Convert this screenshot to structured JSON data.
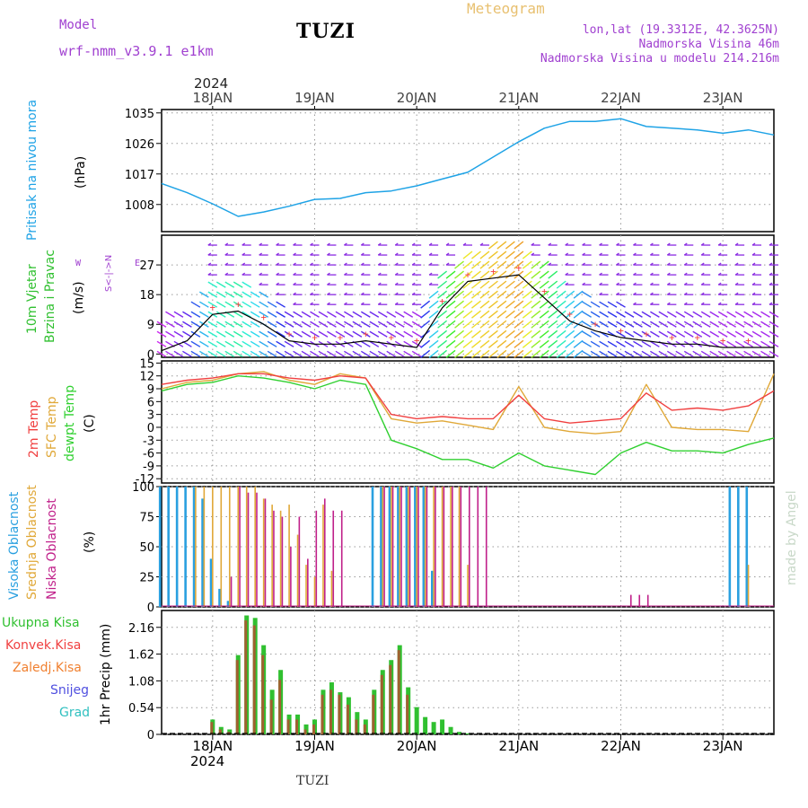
{
  "header": {
    "model_label": "Model",
    "model_name": "wrf-nmm_v3.9.1  e1km",
    "station": "TUZI",
    "product": "Meteogram",
    "lonlat": "lon,lat (19.3312E, 42.3625N)",
    "elevation": "Nadmorska Visina 46m",
    "model_elevation": "Nadmorska Visina u modelu 214.216m",
    "footer_station": "TUZI",
    "watermark": "made by Angel"
  },
  "colors": {
    "pressure": "#1fa3e6",
    "temp2m": "#f04040",
    "sfc_temp": "#e0a838",
    "dewpt": "#30d030",
    "high_cloud": "#2aa0e0",
    "mid_cloud": "#e0a838",
    "low_cloud": "#c0208a",
    "total_precip": "#30c030",
    "conv_precip": "#e04040",
    "model_purple": "#a040d0",
    "product_gold": "#e8c070"
  },
  "time_axis": {
    "start": "2024-01-17 12:00",
    "end": "2024-01-23 12:00",
    "year": "2024",
    "day_labels": [
      "18JAN",
      "19JAN",
      "20JAN",
      "21JAN",
      "22JAN",
      "23JAN"
    ]
  },
  "panels": {
    "pressure": {
      "ylabel_name": "Pritisak na nivou mora",
      "ylabel_unit": "(hPa)",
      "ticks": [
        "1035",
        "1026",
        "1017",
        "1008"
      ]
    },
    "wind": {
      "ylabel_name": "10m Vjetar",
      "ylabel_name2": "Brzina i Pravac",
      "ylabel_unit": "(m/s)",
      "ticks": [
        "27",
        "18",
        "9",
        "0"
      ],
      "compass_ns": "S<-|->N",
      "compass_w": "W",
      "compass_e": "E"
    },
    "temperature": {
      "ylabel_a": "2m Temp",
      "ylabel_b": "SFC Temp",
      "ylabel_c": "dewpt Temp",
      "ylabel_unit": "(C)",
      "ticks": [
        "15",
        "12",
        "9",
        "6",
        "3",
        "0",
        "-3",
        "-6",
        "-9",
        "-12"
      ]
    },
    "cloud": {
      "ylabel_a": "Visoka Oblacnost",
      "ylabel_b": "Srednja Oblacnost",
      "ylabel_c": "Niska Oblacnost",
      "ylabel_unit": "(%)",
      "ticks": [
        "100",
        "75",
        "50",
        "25",
        "0"
      ]
    },
    "precip": {
      "legend": [
        "Ukupna Kisa",
        "Konvek.Kisa",
        "Zaledj.Kisa",
        "Snijeg",
        "Grad"
      ],
      "legend_colors": [
        "#30c030",
        "#f04040",
        "#f08030",
        "#5050e0",
        "#30c0c0"
      ],
      "ylabel": "1hr Precip (mm)",
      "ticks": [
        "2.16",
        "1.62",
        "1.08",
        "0.54",
        "0"
      ]
    }
  },
  "chart_data": [
    {
      "type": "line",
      "panel": "pressure",
      "ylabel": "(hPa)",
      "ylim": [
        1000,
        1036
      ],
      "x_hours": [
        0,
        6,
        12,
        18,
        24,
        30,
        36,
        42,
        48,
        54,
        60,
        66,
        72,
        78,
        84,
        90,
        96,
        102,
        108,
        114,
        120,
        126,
        132,
        138,
        144
      ],
      "series": [
        {
          "values": [
            1014.2,
            1011.5,
            1008.2,
            1004.5,
            1005.8,
            1007.5,
            1009.5,
            1009.8,
            1011.5,
            1012.0,
            1013.5,
            1015.5,
            1017.5,
            1022.0,
            1026.5,
            1030.5,
            1032.5,
            1032.5,
            1033.3,
            1031.0,
            1030.5,
            1030.0,
            1029.0,
            1030.0,
            1028.5
          ]
        }
      ]
    },
    {
      "type": "line",
      "panel": "wind",
      "ylabel": "(m/s)",
      "ylim": [
        -1,
        36
      ],
      "x_hours": [
        0,
        6,
        12,
        18,
        24,
        30,
        36,
        42,
        48,
        54,
        60,
        66,
        72,
        78,
        84,
        90,
        96,
        102,
        108,
        114,
        120,
        126,
        132,
        138,
        144
      ],
      "series": [
        {
          "values": [
            1,
            4,
            12,
            13,
            9,
            4,
            3,
            3,
            4,
            3,
            2,
            14,
            22,
            23,
            24,
            17,
            10,
            7,
            5,
            4,
            3,
            3,
            2,
            2,
            2
          ]
        }
      ]
    },
    {
      "type": "line",
      "panel": "temperature",
      "ylabel": "(C)",
      "ylim": [
        -13,
        15.5
      ],
      "x_hours": [
        0,
        6,
        12,
        18,
        24,
        30,
        36,
        42,
        48,
        54,
        60,
        66,
        72,
        78,
        84,
        90,
        96,
        102,
        108,
        114,
        120,
        126,
        132,
        138,
        144
      ],
      "series": [
        {
          "values": [
            10,
            11,
            11.5,
            12.5,
            12.5,
            11.5,
            11,
            12,
            11.5,
            3,
            2,
            2.5,
            2,
            2,
            7.5,
            2,
            1,
            1.5,
            2,
            8,
            4,
            4.5,
            4,
            5,
            8.5
          ]
        },
        {
          "values": [
            9,
            10.5,
            11,
            12.5,
            13,
            11,
            10,
            12.5,
            11.5,
            2,
            1,
            1.5,
            0.5,
            -0.5,
            9.5,
            0,
            -1,
            -1.5,
            -1,
            10,
            0,
            -0.5,
            -0.5,
            -1,
            12.5
          ]
        },
        {
          "values": [
            8.5,
            10,
            10.5,
            12,
            11.5,
            10.5,
            9,
            11,
            10,
            -3,
            -5,
            -7.5,
            -7.5,
            -9.5,
            -6,
            -9,
            -10,
            -11,
            -6,
            -3.5,
            -5.5,
            -5.5,
            -6,
            -4,
            -2.5
          ]
        }
      ]
    },
    {
      "type": "bar",
      "panel": "cloud",
      "ylabel": "(%)",
      "ylim": [
        0,
        100
      ],
      "x_hours": [
        0,
        2,
        4,
        6,
        8,
        10,
        12,
        14,
        16,
        18,
        20,
        22,
        24,
        26,
        28,
        30,
        32,
        34,
        36,
        38,
        40,
        42,
        44,
        46,
        48,
        50,
        52,
        54,
        56,
        58,
        60,
        62,
        64,
        66,
        68,
        70,
        72,
        74,
        76,
        78,
        80,
        82,
        84,
        86,
        88,
        90,
        92,
        94,
        96,
        98,
        100,
        102,
        104,
        106,
        108,
        110,
        112,
        114,
        116,
        118,
        120,
        122,
        124,
        126,
        128,
        130,
        132,
        134,
        136,
        138,
        140,
        142,
        144
      ],
      "series": [
        {
          "values": [
            100,
            100,
            100,
            100,
            100,
            90,
            40,
            15,
            5,
            0,
            0,
            0,
            0,
            0,
            0,
            0,
            0,
            0,
            0,
            0,
            0,
            0,
            0,
            0,
            0,
            100,
            100,
            100,
            100,
            100,
            100,
            100,
            30,
            0,
            0,
            0,
            0,
            0,
            0,
            0,
            0,
            0,
            0,
            0,
            0,
            0,
            0,
            0,
            0,
            0,
            0,
            0,
            0,
            0,
            0,
            0,
            0,
            0,
            0,
            0,
            0,
            0,
            0,
            0,
            0,
            0,
            0,
            100,
            100,
            100,
            0,
            0,
            0
          ]
        },
        {
          "values": [
            0,
            0,
            0,
            0,
            100,
            100,
            100,
            100,
            100,
            100,
            100,
            100,
            90,
            85,
            80,
            85,
            60,
            35,
            25,
            85,
            30,
            0,
            0,
            0,
            0,
            0,
            100,
            100,
            100,
            100,
            100,
            100,
            100,
            100,
            100,
            100,
            35,
            0,
            0,
            0,
            0,
            0,
            0,
            0,
            0,
            0,
            0,
            0,
            0,
            0,
            0,
            0,
            0,
            0,
            0,
            0,
            0,
            0,
            0,
            0,
            0,
            0,
            0,
            0,
            0,
            0,
            0,
            0,
            0,
            35,
            0,
            0,
            0
          ]
        },
        {
          "values": [
            0,
            0,
            0,
            0,
            0,
            0,
            0,
            0,
            25,
            100,
            95,
            95,
            90,
            80,
            75,
            50,
            75,
            40,
            80,
            90,
            80,
            80,
            0,
            0,
            0,
            0,
            100,
            100,
            100,
            100,
            100,
            100,
            100,
            100,
            100,
            100,
            100,
            100,
            100,
            0,
            0,
            0,
            0,
            0,
            0,
            0,
            0,
            0,
            0,
            0,
            0,
            0,
            0,
            0,
            0,
            10,
            10,
            10,
            0,
            0,
            0,
            0,
            0,
            0,
            0,
            0,
            0,
            0,
            0,
            0,
            0,
            0,
            0
          ]
        }
      ]
    },
    {
      "type": "bar",
      "panel": "precip",
      "ylabel": "1hr Precip (mm)",
      "ylim": [
        0,
        2.5
      ],
      "x_hours": [
        12,
        14,
        16,
        18,
        20,
        22,
        24,
        26,
        28,
        30,
        32,
        34,
        36,
        38,
        40,
        42,
        44,
        46,
        48,
        50,
        52,
        54,
        56,
        58,
        60,
        62,
        64,
        66,
        68,
        70,
        72
      ],
      "series": [
        {
          "values": [
            0.3,
            0.15,
            0.1,
            1.6,
            2.4,
            2.35,
            1.8,
            0.9,
            1.3,
            0.4,
            0.4,
            0.2,
            0.3,
            0.9,
            1.05,
            0.85,
            0.75,
            0.45,
            0.3,
            0.9,
            1.3,
            1.5,
            1.8,
            0.95,
            0.55,
            0.35,
            0.25,
            0.3,
            0.15,
            0.05,
            0.02
          ]
        },
        {
          "values": [
            0.25,
            0.1,
            0.05,
            1.5,
            2.3,
            2.2,
            1.6,
            0.7,
            1.1,
            0.3,
            0.3,
            0.1,
            0.2,
            0.8,
            0.9,
            0.8,
            0.6,
            0.3,
            0.2,
            0.8,
            1.2,
            1.4,
            1.7,
            0.8,
            0,
            0,
            0,
            0,
            0,
            0,
            0
          ]
        }
      ]
    }
  ]
}
